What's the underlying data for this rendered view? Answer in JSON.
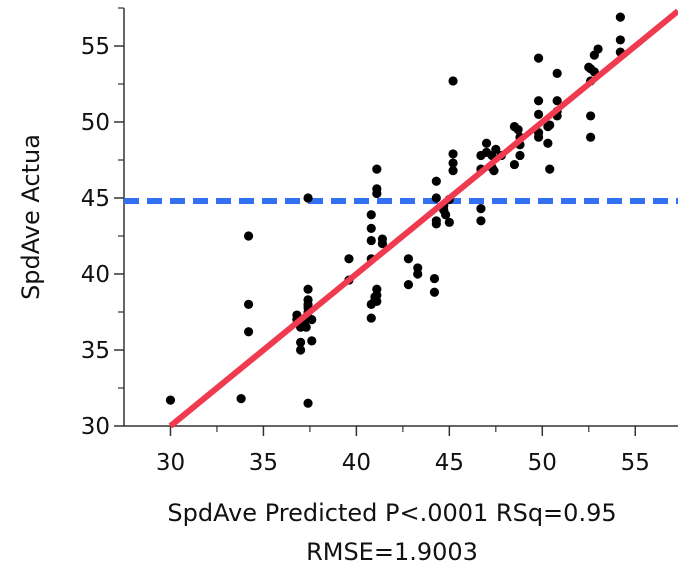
{
  "chart_data": {
    "type": "scatter",
    "title": "",
    "xlabel_line1": "SpdAve Predicted P<.0001 RSq=0.95",
    "xlabel_line2": "RMSE=1.9003",
    "ylabel": "SpdAve Actua",
    "xlim": [
      27.5,
      57.3
    ],
    "ylim": [
      30.0,
      57.5
    ],
    "x_ticks": [
      30,
      35,
      40,
      45,
      50,
      55
    ],
    "y_ticks": [
      30,
      35,
      40,
      45,
      50,
      55
    ],
    "grid": false,
    "colors": {
      "points": "#000000",
      "fit_line": "#ef3a4f",
      "mean_line": "#3271f1",
      "axis": "#333333"
    },
    "mean_line_y": 44.8,
    "fit_line": {
      "x": [
        30.0,
        57.3
      ],
      "y": [
        30.0,
        57.3
      ]
    },
    "points": [
      [
        30.0,
        31.7
      ],
      [
        33.8,
        31.8
      ],
      [
        34.2,
        42.5
      ],
      [
        34.2,
        38.0
      ],
      [
        34.2,
        36.2
      ],
      [
        36.8,
        37.3
      ],
      [
        36.8,
        37.0
      ],
      [
        37.0,
        36.8
      ],
      [
        37.0,
        36.5
      ],
      [
        37.0,
        35.5
      ],
      [
        37.0,
        35.0
      ],
      [
        37.3,
        37.0
      ],
      [
        37.3,
        36.5
      ],
      [
        37.4,
        39.0
      ],
      [
        37.4,
        38.3
      ],
      [
        37.4,
        38.0
      ],
      [
        37.4,
        37.8
      ],
      [
        37.4,
        37.5
      ],
      [
        37.4,
        31.5
      ],
      [
        37.4,
        45.0
      ],
      [
        37.6,
        35.6
      ],
      [
        37.6,
        37.0
      ],
      [
        39.6,
        41.0
      ],
      [
        39.6,
        39.6
      ],
      [
        40.8,
        43.9
      ],
      [
        40.8,
        43.0
      ],
      [
        40.8,
        42.2
      ],
      [
        40.8,
        41.0
      ],
      [
        40.8,
        38.0
      ],
      [
        40.8,
        37.1
      ],
      [
        41.0,
        38.3
      ],
      [
        41.0,
        38.5
      ],
      [
        41.1,
        46.9
      ],
      [
        41.1,
        45.6
      ],
      [
        41.1,
        45.3
      ],
      [
        41.1,
        39.0
      ],
      [
        41.1,
        38.6
      ],
      [
        41.1,
        38.2
      ],
      [
        41.4,
        42.3
      ],
      [
        41.4,
        42.0
      ],
      [
        42.8,
        41.0
      ],
      [
        42.8,
        39.3
      ],
      [
        43.3,
        40.4
      ],
      [
        43.3,
        40.0
      ],
      [
        44.2,
        39.7
      ],
      [
        44.2,
        38.8
      ],
      [
        44.3,
        46.1
      ],
      [
        44.3,
        45.0
      ],
      [
        44.3,
        43.5
      ],
      [
        44.3,
        43.3
      ],
      [
        44.7,
        44.5
      ],
      [
        44.7,
        44.2
      ],
      [
        44.8,
        43.9
      ],
      [
        45.0,
        44.9
      ],
      [
        45.0,
        43.4
      ],
      [
        45.2,
        52.7
      ],
      [
        45.2,
        47.9
      ],
      [
        45.2,
        47.3
      ],
      [
        45.2,
        46.8
      ],
      [
        46.7,
        47.8
      ],
      [
        46.7,
        46.9
      ],
      [
        46.7,
        44.3
      ],
      [
        46.7,
        43.5
      ],
      [
        47.0,
        48.6
      ],
      [
        47.0,
        48.0
      ],
      [
        47.3,
        47.8
      ],
      [
        47.3,
        47.0
      ],
      [
        47.4,
        46.8
      ],
      [
        47.5,
        48.2
      ],
      [
        47.8,
        47.8
      ],
      [
        48.5,
        49.7
      ],
      [
        48.5,
        47.2
      ],
      [
        48.7,
        49.5
      ],
      [
        48.8,
        49.0
      ],
      [
        48.8,
        48.5
      ],
      [
        48.8,
        47.8
      ],
      [
        49.8,
        54.2
      ],
      [
        49.8,
        51.4
      ],
      [
        49.8,
        50.5
      ],
      [
        49.8,
        49.3
      ],
      [
        49.8,
        49.0
      ],
      [
        50.3,
        48.6
      ],
      [
        50.3,
        49.7
      ],
      [
        50.4,
        46.9
      ],
      [
        50.4,
        49.8
      ],
      [
        50.8,
        53.2
      ],
      [
        50.8,
        51.4
      ],
      [
        50.8,
        50.7
      ],
      [
        50.8,
        50.4
      ],
      [
        52.5,
        53.6
      ],
      [
        52.6,
        52.7
      ],
      [
        52.6,
        50.4
      ],
      [
        52.6,
        49.0
      ],
      [
        52.6,
        53.5
      ],
      [
        52.8,
        54.4
      ],
      [
        52.8,
        53.3
      ],
      [
        53.0,
        54.8
      ],
      [
        54.2,
        56.9
      ],
      [
        54.2,
        55.4
      ],
      [
        54.2,
        54.6
      ]
    ]
  }
}
